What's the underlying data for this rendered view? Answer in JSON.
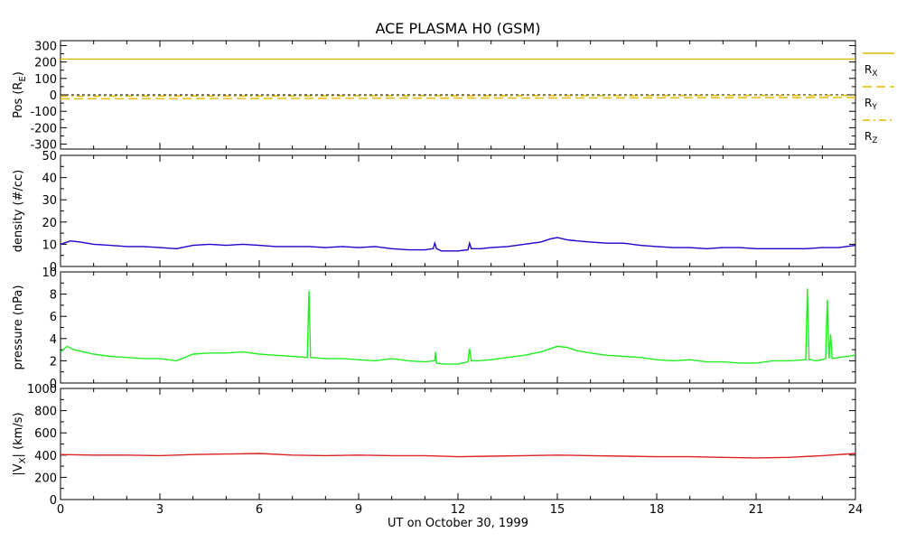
{
  "chart_data": {
    "type": "line",
    "title": "ACE PLASMA H0 (GSM)",
    "xlabel": "UT on October 30, 1999",
    "xlim": [
      0,
      24
    ],
    "x_ticks": [
      0,
      3,
      6,
      9,
      12,
      15,
      18,
      21,
      24
    ],
    "x_tick_labels": [
      "0",
      "3",
      "6",
      "9",
      "12",
      "15",
      "18",
      "21",
      "24"
    ],
    "panels": [
      {
        "id": "pos",
        "ylabel_main": "Pos (R",
        "ylabel_sub": "E",
        "ylabel_end": ")",
        "ylim": [
          -330,
          330
        ],
        "y_ticks": [
          300,
          200,
          100,
          0,
          -100,
          -200,
          -300
        ],
        "y_tick_labels": [
          "300",
          "200",
          "100",
          "0",
          "-100",
          "-200",
          "-300"
        ],
        "zero_line": true,
        "series": [
          {
            "name_main": "R",
            "name_sub": "X",
            "color": "#e6b800",
            "dash": "solid",
            "x": [
              0,
              24
            ],
            "values": [
              218,
              218
            ]
          },
          {
            "name_main": "R",
            "name_sub": "Y",
            "color": "#e6b800",
            "dash": "dash",
            "x": [
              0,
              3,
              6,
              9,
              12,
              15,
              18,
              21,
              24
            ],
            "values": [
              -24,
              -23,
              -22,
              -21,
              -20,
              -19,
              -18,
              -17,
              -16
            ]
          },
          {
            "name_main": "R",
            "name_sub": "Z",
            "color": "#e6b800",
            "dash": "dashdot",
            "x": [
              0,
              3,
              6,
              9,
              12,
              15,
              18,
              21,
              24
            ],
            "values": [
              -8,
              -7,
              -7,
              -6,
              -6,
              -5,
              -5,
              -4,
              -4
            ]
          }
        ]
      },
      {
        "id": "density",
        "ylabel_main": "density (#/cc)",
        "ylim": [
          0,
          50
        ],
        "y_ticks": [
          50,
          40,
          30,
          20,
          10,
          0
        ],
        "y_tick_labels": [
          "50",
          "40",
          "30",
          "20",
          "10",
          "0"
        ],
        "series": [
          {
            "name": "",
            "color": "#2200cc",
            "dash": "solid",
            "x": [
              0,
              0.3,
              0.6,
              1,
              1.5,
              2,
              2.5,
              3,
              3.5,
              4,
              4.5,
              5,
              5.5,
              6,
              6.5,
              7,
              7.5,
              8,
              8.5,
              9,
              9.5,
              10,
              10.5,
              11,
              11.25,
              11.3,
              11.35,
              11.5,
              12,
              12.3,
              12.35,
              12.4,
              12.7,
              13,
              13.5,
              14,
              14.5,
              14.8,
              15,
              15.3,
              15.6,
              16,
              16.5,
              17,
              17.5,
              18,
              18.5,
              19,
              19.5,
              20,
              20.5,
              21,
              21.5,
              22,
              22.5,
              23,
              23.5,
              24
            ],
            "values": [
              10,
              11.5,
              11,
              10,
              9.5,
              9,
              9,
              8.5,
              8,
              9.5,
              10,
              9.5,
              10,
              9.5,
              9,
              9,
              9,
              8.5,
              9,
              8.5,
              9,
              8,
              7.5,
              7.5,
              8,
              10.5,
              8,
              7,
              7,
              7.5,
              10.5,
              8,
              8,
              8.5,
              9,
              10,
              11,
              12.5,
              13,
              12,
              11.5,
              11,
              10.5,
              10.5,
              9.5,
              9,
              8.5,
              8.5,
              8,
              8.5,
              8.5,
              8,
              8,
              8,
              8,
              8.5,
              8.5,
              9.5
            ]
          }
        ]
      },
      {
        "id": "pressure",
        "ylabel_main": "pressure (nPa)",
        "ylim": [
          0,
          10
        ],
        "y_ticks": [
          10,
          8,
          6,
          4,
          2,
          0
        ],
        "y_tick_labels": [
          "10",
          "8",
          "6",
          "4",
          "2",
          "0"
        ],
        "series": [
          {
            "name": "",
            "color": "#22ee22",
            "dash": "solid",
            "x": [
              0,
              0.2,
              0.4,
              0.7,
              1,
              1.5,
              2,
              2.5,
              3,
              3.5,
              4,
              4.5,
              5,
              5.5,
              6,
              6.5,
              7,
              7.45,
              7.5,
              7.55,
              8,
              8.5,
              9,
              9.5,
              10,
              10.5,
              11,
              11.3,
              11.32,
              11.35,
              11.6,
              12,
              12.3,
              12.35,
              12.4,
              12.6,
              13,
              13.5,
              14,
              14.5,
              15,
              15.3,
              15.6,
              16,
              16.5,
              17,
              17.5,
              18,
              18.5,
              19,
              19.5,
              20,
              20.5,
              21,
              21.5,
              22,
              22.5,
              22.55,
              22.6,
              22.65,
              22.8,
              23,
              23.1,
              23.15,
              23.2,
              23.25,
              23.3,
              23.5,
              24
            ],
            "values": [
              2.8,
              3.3,
              3.0,
              2.8,
              2.6,
              2.4,
              2.3,
              2.2,
              2.2,
              2.0,
              2.6,
              2.7,
              2.7,
              2.8,
              2.6,
              2.5,
              2.4,
              2.3,
              8.3,
              2.3,
              2.2,
              2.2,
              2.1,
              2.0,
              2.2,
              2.0,
              1.9,
              2.0,
              2.8,
              1.8,
              1.7,
              1.7,
              1.9,
              3.1,
              2.0,
              2.0,
              2.1,
              2.3,
              2.5,
              2.8,
              3.3,
              3.2,
              2.9,
              2.7,
              2.5,
              2.4,
              2.3,
              2.1,
              2.0,
              2.1,
              1.9,
              1.9,
              1.8,
              1.8,
              2.0,
              2.0,
              2.1,
              8.5,
              2.1,
              2.1,
              2.0,
              2.1,
              2.2,
              7.5,
              2.2,
              4.4,
              2.2,
              2.3,
              2.5
            ]
          }
        ]
      },
      {
        "id": "vx",
        "ylabel_main": "|V",
        "ylabel_sub": "X",
        "ylabel_end": "| (km/s)",
        "ylim": [
          0,
          1000
        ],
        "y_ticks": [
          1000,
          800,
          600,
          400,
          200,
          0
        ],
        "y_tick_labels": [
          "1000",
          "800",
          "600",
          "400",
          "200",
          "0"
        ],
        "series": [
          {
            "name": "",
            "color": "#dd2222",
            "dash": "solid",
            "x": [
              0,
              1,
              2,
              3,
              4,
              5,
              6,
              7,
              8,
              9,
              10,
              11,
              12,
              13,
              14,
              15,
              16,
              17,
              18,
              19,
              20,
              21,
              22,
              23,
              24
            ],
            "values": [
              405,
              400,
              400,
              395,
              405,
              410,
              415,
              400,
              395,
              400,
              395,
              395,
              385,
              390,
              395,
              400,
              395,
              390,
              385,
              385,
              380,
              375,
              380,
              395,
              415
            ]
          }
        ]
      }
    ]
  }
}
